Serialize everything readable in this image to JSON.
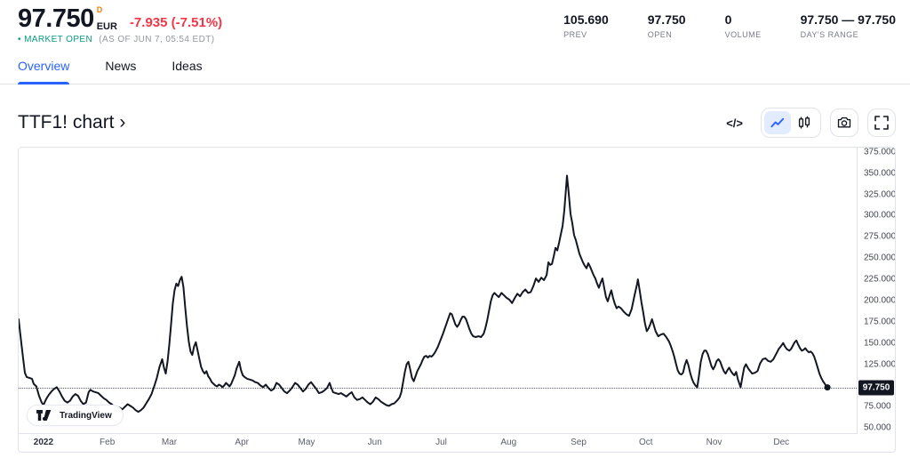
{
  "header": {
    "price": "97.750",
    "interval_badge": "D",
    "currency": "EUR",
    "change": "-7.935 (-7.51%)",
    "market_status": "• MARKET OPEN",
    "as_of": "(AS OF JUN 7, 05:54 EDT)",
    "stats": [
      {
        "value": "105.690",
        "label": "PREV"
      },
      {
        "value": "97.750",
        "label": "OPEN"
      },
      {
        "value": "0",
        "label": "VOLUME"
      },
      {
        "value": "97.750 — 97.750",
        "label": "DAY'S RANGE"
      }
    ]
  },
  "tabs": [
    {
      "label": "Overview",
      "active": true
    },
    {
      "label": "News",
      "active": false
    },
    {
      "label": "Ideas",
      "active": false
    }
  ],
  "title": "TTF1! chart ›",
  "toolbar": {
    "code_label": "</>"
  },
  "attribution": {
    "label": "TradingView"
  },
  "colors": {
    "accent_blue": "#2962FF",
    "negative_red": "#F23645",
    "positive_teal": "#089981",
    "interval_orange": "#F57C00",
    "text_dark": "#131722",
    "text_gray": "#787B86",
    "border": "#E0E3EB",
    "line": "#131722"
  },
  "chart_data": {
    "type": "line",
    "symbol": "TTF1!",
    "currency": "EUR",
    "last_price": 97.75,
    "last_price_label": "97.750",
    "ylim": [
      44,
      380
    ],
    "x_domain": [
      0,
      946
    ],
    "grid": false,
    "y_ticks": [
      {
        "v": 375,
        "label": "375.000"
      },
      {
        "v": 350,
        "label": "350.000"
      },
      {
        "v": 325,
        "label": "325.000"
      },
      {
        "v": 300,
        "label": "300.000"
      },
      {
        "v": 275,
        "label": "275.000"
      },
      {
        "v": 250,
        "label": "250.000"
      },
      {
        "v": 225,
        "label": "225.000"
      },
      {
        "v": 200,
        "label": "200.000"
      },
      {
        "v": 175,
        "label": "175.000"
      },
      {
        "v": 150,
        "label": "150.000"
      },
      {
        "v": 125,
        "label": "125.000"
      },
      {
        "v": 75,
        "label": "75.000"
      },
      {
        "v": 50,
        "label": "50.000"
      }
    ],
    "x_ticks": [
      {
        "x": 28,
        "label": "2022",
        "year": true
      },
      {
        "x": 100,
        "label": "Feb"
      },
      {
        "x": 170,
        "label": "Mar"
      },
      {
        "x": 252,
        "label": "Apr"
      },
      {
        "x": 325,
        "label": "May"
      },
      {
        "x": 402,
        "label": "Jun"
      },
      {
        "x": 477,
        "label": "Jul"
      },
      {
        "x": 553,
        "label": "Aug"
      },
      {
        "x": 632,
        "label": "Sep"
      },
      {
        "x": 708,
        "label": "Oct"
      },
      {
        "x": 785,
        "label": "Nov"
      },
      {
        "x": 861,
        "label": "Dec"
      }
    ],
    "series": [
      [
        0,
        178
      ],
      [
        1,
        168
      ],
      [
        3,
        150
      ],
      [
        5,
        132
      ],
      [
        7,
        115
      ],
      [
        9,
        110
      ],
      [
        12,
        109
      ],
      [
        15,
        108
      ],
      [
        17,
        102
      ],
      [
        20,
        99
      ],
      [
        23,
        88
      ],
      [
        26,
        80
      ],
      [
        28,
        77
      ],
      [
        31,
        84
      ],
      [
        34,
        89
      ],
      [
        37,
        93
      ],
      [
        40,
        96
      ],
      [
        43,
        98
      ],
      [
        46,
        93
      ],
      [
        49,
        87
      ],
      [
        52,
        82
      ],
      [
        55,
        80
      ],
      [
        58,
        82
      ],
      [
        61,
        87
      ],
      [
        64,
        90
      ],
      [
        67,
        88
      ],
      [
        70,
        82
      ],
      [
        73,
        78
      ],
      [
        76,
        80
      ],
      [
        79,
        92
      ],
      [
        81,
        95
      ],
      [
        84,
        93
      ],
      [
        87,
        92
      ],
      [
        90,
        91
      ],
      [
        93,
        88
      ],
      [
        96,
        85
      ],
      [
        99,
        83
      ],
      [
        102,
        80
      ],
      [
        105,
        78
      ],
      [
        108,
        75
      ],
      [
        111,
        73
      ],
      [
        114,
        74
      ],
      [
        117,
        72
      ],
      [
        120,
        75
      ],
      [
        123,
        78
      ],
      [
        126,
        76
      ],
      [
        129,
        74
      ],
      [
        132,
        71
      ],
      [
        135,
        69
      ],
      [
        138,
        71
      ],
      [
        141,
        74
      ],
      [
        144,
        79
      ],
      [
        147,
        84
      ],
      [
        150,
        90
      ],
      [
        153,
        99
      ],
      [
        156,
        109
      ],
      [
        159,
        122
      ],
      [
        162,
        131
      ],
      [
        164,
        121
      ],
      [
        166,
        114
      ],
      [
        168,
        128
      ],
      [
        170,
        148
      ],
      [
        172,
        172
      ],
      [
        174,
        196
      ],
      [
        176,
        212
      ],
      [
        178,
        220
      ],
      [
        180,
        217
      ],
      [
        182,
        224
      ],
      [
        184,
        228
      ],
      [
        186,
        216
      ],
      [
        188,
        192
      ],
      [
        190,
        170
      ],
      [
        192,
        152
      ],
      [
        194,
        140
      ],
      [
        196,
        136
      ],
      [
        198,
        146
      ],
      [
        200,
        151
      ],
      [
        202,
        141
      ],
      [
        204,
        131
      ],
      [
        206,
        122
      ],
      [
        208,
        117
      ],
      [
        210,
        114
      ],
      [
        212,
        117
      ],
      [
        214,
        111
      ],
      [
        216,
        108
      ],
      [
        218,
        104
      ],
      [
        220,
        102
      ],
      [
        222,
        100
      ],
      [
        224,
        99
      ],
      [
        226,
        101
      ],
      [
        228,
        100
      ],
      [
        230,
        98
      ],
      [
        232,
        100
      ],
      [
        234,
        103
      ],
      [
        236,
        101
      ],
      [
        238,
        99
      ],
      [
        240,
        102
      ],
      [
        242,
        107
      ],
      [
        244,
        112
      ],
      [
        246,
        120
      ],
      [
        249,
        128
      ],
      [
        251,
        118
      ],
      [
        253,
        112
      ],
      [
        255,
        110
      ],
      [
        258,
        108
      ],
      [
        261,
        107
      ],
      [
        264,
        106
      ],
      [
        267,
        104
      ],
      [
        270,
        103
      ],
      [
        273,
        100
      ],
      [
        276,
        98
      ],
      [
        279,
        101
      ],
      [
        282,
        97
      ],
      [
        285,
        94
      ],
      [
        288,
        96
      ],
      [
        291,
        103
      ],
      [
        294,
        101
      ],
      [
        297,
        97
      ],
      [
        300,
        93
      ],
      [
        303,
        91
      ],
      [
        306,
        94
      ],
      [
        309,
        98
      ],
      [
        312,
        103
      ],
      [
        315,
        101
      ],
      [
        318,
        97
      ],
      [
        321,
        93
      ],
      [
        324,
        96
      ],
      [
        327,
        101
      ],
      [
        330,
        104
      ],
      [
        333,
        100
      ],
      [
        336,
        96
      ],
      [
        339,
        91
      ],
      [
        342,
        92
      ],
      [
        345,
        94
      ],
      [
        348,
        97
      ],
      [
        351,
        103
      ],
      [
        353,
        97
      ],
      [
        355,
        92
      ],
      [
        358,
        91
      ],
      [
        361,
        90
      ],
      [
        364,
        91
      ],
      [
        367,
        89
      ],
      [
        370,
        87
      ],
      [
        373,
        90
      ],
      [
        376,
        92
      ],
      [
        379,
        86
      ],
      [
        382,
        83
      ],
      [
        385,
        84
      ],
      [
        388,
        86
      ],
      [
        391,
        83
      ],
      [
        394,
        80
      ],
      [
        397,
        78
      ],
      [
        400,
        81
      ],
      [
        403,
        86
      ],
      [
        406,
        84
      ],
      [
        409,
        81
      ],
      [
        412,
        79
      ],
      [
        415,
        77
      ],
      [
        418,
        76
      ],
      [
        421,
        78
      ],
      [
        424,
        79
      ],
      [
        427,
        82
      ],
      [
        430,
        86
      ],
      [
        432,
        92
      ],
      [
        434,
        104
      ],
      [
        436,
        116
      ],
      [
        438,
        125
      ],
      [
        440,
        128
      ],
      [
        442,
        119
      ],
      [
        444,
        109
      ],
      [
        446,
        105
      ],
      [
        448,
        111
      ],
      [
        450,
        117
      ],
      [
        452,
        121
      ],
      [
        454,
        125
      ],
      [
        456,
        130
      ],
      [
        458,
        134
      ],
      [
        460,
        135
      ],
      [
        462,
        133
      ],
      [
        464,
        135
      ],
      [
        466,
        134
      ],
      [
        468,
        136
      ],
      [
        470,
        139
      ],
      [
        473,
        145
      ],
      [
        476,
        153
      ],
      [
        479,
        161
      ],
      [
        482,
        170
      ],
      [
        485,
        179
      ],
      [
        487,
        185
      ],
      [
        489,
        184
      ],
      [
        491,
        178
      ],
      [
        493,
        172
      ],
      [
        495,
        169
      ],
      [
        497,
        172
      ],
      [
        499,
        177
      ],
      [
        501,
        181
      ],
      [
        503,
        181
      ],
      [
        505,
        178
      ],
      [
        507,
        172
      ],
      [
        509,
        166
      ],
      [
        511,
        161
      ],
      [
        513,
        158
      ],
      [
        516,
        157
      ],
      [
        519,
        158
      ],
      [
        522,
        157
      ],
      [
        525,
        161
      ],
      [
        527,
        168
      ],
      [
        529,
        177
      ],
      [
        531,
        188
      ],
      [
        533,
        199
      ],
      [
        535,
        206
      ],
      [
        537,
        209
      ],
      [
        539,
        207
      ],
      [
        542,
        204
      ],
      [
        545,
        209
      ],
      [
        548,
        206
      ],
      [
        551,
        203
      ],
      [
        554,
        201
      ],
      [
        557,
        197
      ],
      [
        560,
        203
      ],
      [
        563,
        208
      ],
      [
        566,
        205
      ],
      [
        569,
        210
      ],
      [
        572,
        213
      ],
      [
        575,
        209
      ],
      [
        578,
        210
      ],
      [
        581,
        217
      ],
      [
        584,
        226
      ],
      [
        587,
        222
      ],
      [
        590,
        227
      ],
      [
        593,
        224
      ],
      [
        596,
        230
      ],
      [
        598,
        245
      ],
      [
        600,
        242
      ],
      [
        602,
        243
      ],
      [
        604,
        252
      ],
      [
        606,
        262
      ],
      [
        608,
        259
      ],
      [
        610,
        268
      ],
      [
        612,
        278
      ],
      [
        614,
        288
      ],
      [
        616,
        306
      ],
      [
        618,
        333
      ],
      [
        619,
        347
      ],
      [
        621,
        326
      ],
      [
        623,
        302
      ],
      [
        625,
        291
      ],
      [
        627,
        277
      ],
      [
        629,
        271
      ],
      [
        631,
        263
      ],
      [
        633,
        255
      ],
      [
        635,
        250
      ],
      [
        637,
        245
      ],
      [
        639,
        241
      ],
      [
        641,
        238
      ],
      [
        643,
        244
      ],
      [
        645,
        240
      ],
      [
        647,
        235
      ],
      [
        649,
        230
      ],
      [
        651,
        226
      ],
      [
        653,
        220
      ],
      [
        655,
        215
      ],
      [
        657,
        221
      ],
      [
        659,
        226
      ],
      [
        661,
        215
      ],
      [
        663,
        204
      ],
      [
        665,
        199
      ],
      [
        667,
        206
      ],
      [
        669,
        212
      ],
      [
        671,
        203
      ],
      [
        673,
        196
      ],
      [
        675,
        191
      ],
      [
        677,
        193
      ],
      [
        680,
        191
      ],
      [
        683,
        187
      ],
      [
        686,
        184
      ],
      [
        689,
        182
      ],
      [
        692,
        190
      ],
      [
        695,
        205
      ],
      [
        698,
        219
      ],
      [
        699,
        225
      ],
      [
        701,
        212
      ],
      [
        703,
        198
      ],
      [
        705,
        186
      ],
      [
        707,
        173
      ],
      [
        709,
        164
      ],
      [
        711,
        167
      ],
      [
        713,
        172
      ],
      [
        715,
        178
      ],
      [
        717,
        171
      ],
      [
        719,
        164
      ],
      [
        722,
        158
      ],
      [
        725,
        160
      ],
      [
        728,
        161
      ],
      [
        731,
        157
      ],
      [
        734,
        152
      ],
      [
        736,
        147
      ],
      [
        738,
        141
      ],
      [
        740,
        134
      ],
      [
        742,
        126
      ],
      [
        744,
        118
      ],
      [
        746,
        114
      ],
      [
        748,
        113
      ],
      [
        750,
        115
      ],
      [
        752,
        124
      ],
      [
        754,
        130
      ],
      [
        756,
        124
      ],
      [
        758,
        115
      ],
      [
        760,
        108
      ],
      [
        762,
        103
      ],
      [
        764,
        100
      ],
      [
        766,
        98
      ],
      [
        768,
        112
      ],
      [
        770,
        128
      ],
      [
        772,
        137
      ],
      [
        774,
        141
      ],
      [
        776,
        141
      ],
      [
        778,
        137
      ],
      [
        780,
        130
      ],
      [
        782,
        123
      ],
      [
        784,
        119
      ],
      [
        786,
        123
      ],
      [
        788,
        129
      ],
      [
        790,
        131
      ],
      [
        792,
        128
      ],
      [
        794,
        122
      ],
      [
        796,
        117
      ],
      [
        798,
        114
      ],
      [
        800,
        118
      ],
      [
        802,
        121
      ],
      [
        804,
        117
      ],
      [
        806,
        114
      ],
      [
        808,
        112
      ],
      [
        810,
        116
      ],
      [
        812,
        107
      ],
      [
        815,
        98
      ],
      [
        817,
        110
      ],
      [
        819,
        121
      ],
      [
        821,
        125
      ],
      [
        823,
        121
      ],
      [
        825,
        118
      ],
      [
        828,
        114
      ],
      [
        831,
        115
      ],
      [
        834,
        117
      ],
      [
        837,
        126
      ],
      [
        840,
        131
      ],
      [
        843,
        132
      ],
      [
        846,
        129
      ],
      [
        849,
        128
      ],
      [
        852,
        131
      ],
      [
        855,
        137
      ],
      [
        858,
        143
      ],
      [
        861,
        147
      ],
      [
        863,
        150
      ],
      [
        865,
        146
      ],
      [
        867,
        143
      ],
      [
        870,
        141
      ],
      [
        872,
        143
      ],
      [
        874,
        147
      ],
      [
        876,
        151
      ],
      [
        878,
        153
      ],
      [
        880,
        148
      ],
      [
        882,
        144
      ],
      [
        884,
        141
      ],
      [
        886,
        142
      ],
      [
        888,
        144
      ],
      [
        890,
        141
      ],
      [
        892,
        139
      ],
      [
        894,
        140
      ],
      [
        896,
        138
      ],
      [
        898,
        134
      ],
      [
        900,
        128
      ],
      [
        902,
        121
      ],
      [
        904,
        114
      ],
      [
        906,
        109
      ],
      [
        908,
        105
      ],
      [
        910,
        102
      ],
      [
        912,
        99
      ],
      [
        913,
        97.75
      ]
    ]
  }
}
